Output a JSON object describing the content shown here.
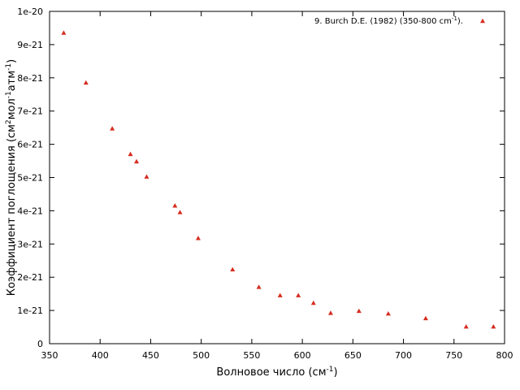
{
  "chart_data": {
    "type": "scatter",
    "xlabel_main": "Волновое число (см",
    "xlabel_sup": "-1",
    "xlabel_end": ")",
    "ylabel_parts": [
      "Коэффициент поглощения (см",
      "2",
      "мол",
      "-1",
      "атм",
      "-1",
      ")"
    ],
    "xlim": [
      350,
      800
    ],
    "ylim": [
      0,
      1e-20
    ],
    "x_ticks": [
      {
        "value": 350,
        "label": "350"
      },
      {
        "value": 400,
        "label": "400"
      },
      {
        "value": 450,
        "label": "450"
      },
      {
        "value": 500,
        "label": "500"
      },
      {
        "value": 550,
        "label": "550"
      },
      {
        "value": 600,
        "label": "600"
      },
      {
        "value": 650,
        "label": "650"
      },
      {
        "value": 700,
        "label": "700"
      },
      {
        "value": 750,
        "label": "750"
      },
      {
        "value": 800,
        "label": "800"
      }
    ],
    "y_ticks": [
      {
        "value": 0,
        "label": "0"
      },
      {
        "value": 1e-21,
        "label": "1e-21"
      },
      {
        "value": 2e-21,
        "label": "2e-21"
      },
      {
        "value": 3e-21,
        "label": "3e-21"
      },
      {
        "value": 4e-21,
        "label": "4e-21"
      },
      {
        "value": 5e-21,
        "label": "5e-21"
      },
      {
        "value": 6e-21,
        "label": "6e-21"
      },
      {
        "value": 7e-21,
        "label": "7e-21"
      },
      {
        "value": 8e-21,
        "label": "8e-21"
      },
      {
        "value": 9e-21,
        "label": "9e-21"
      },
      {
        "value": 1e-20,
        "label": "1e-20"
      }
    ],
    "grid": false,
    "legend_position": "top-right",
    "series": [
      {
        "name_main": "9. Burch D.E. (1982) (350-800 cm",
        "name_sup": "-1",
        "name_end": ").",
        "color": "#d62d20",
        "marker": "triangle",
        "points": [
          {
            "x": 364,
            "y": 9.35e-21
          },
          {
            "x": 386,
            "y": 7.85e-21
          },
          {
            "x": 412,
            "y": 6.47e-21
          },
          {
            "x": 430,
            "y": 5.7e-21
          },
          {
            "x": 436,
            "y": 5.48e-21
          },
          {
            "x": 446,
            "y": 5.02e-21
          },
          {
            "x": 474,
            "y": 4.15e-21
          },
          {
            "x": 479,
            "y": 3.95e-21
          },
          {
            "x": 497,
            "y": 3.17e-21
          },
          {
            "x": 531,
            "y": 2.23e-21
          },
          {
            "x": 557,
            "y": 1.7e-21
          },
          {
            "x": 578,
            "y": 1.45e-21
          },
          {
            "x": 596,
            "y": 1.45e-21
          },
          {
            "x": 611,
            "y": 1.22e-21
          },
          {
            "x": 628,
            "y": 9.2e-22
          },
          {
            "x": 656,
            "y": 9.8e-22
          },
          {
            "x": 685,
            "y": 9e-22
          },
          {
            "x": 722,
            "y": 7.6e-22
          },
          {
            "x": 762,
            "y": 5.1e-22
          },
          {
            "x": 789,
            "y": 5.1e-22
          }
        ]
      }
    ]
  }
}
